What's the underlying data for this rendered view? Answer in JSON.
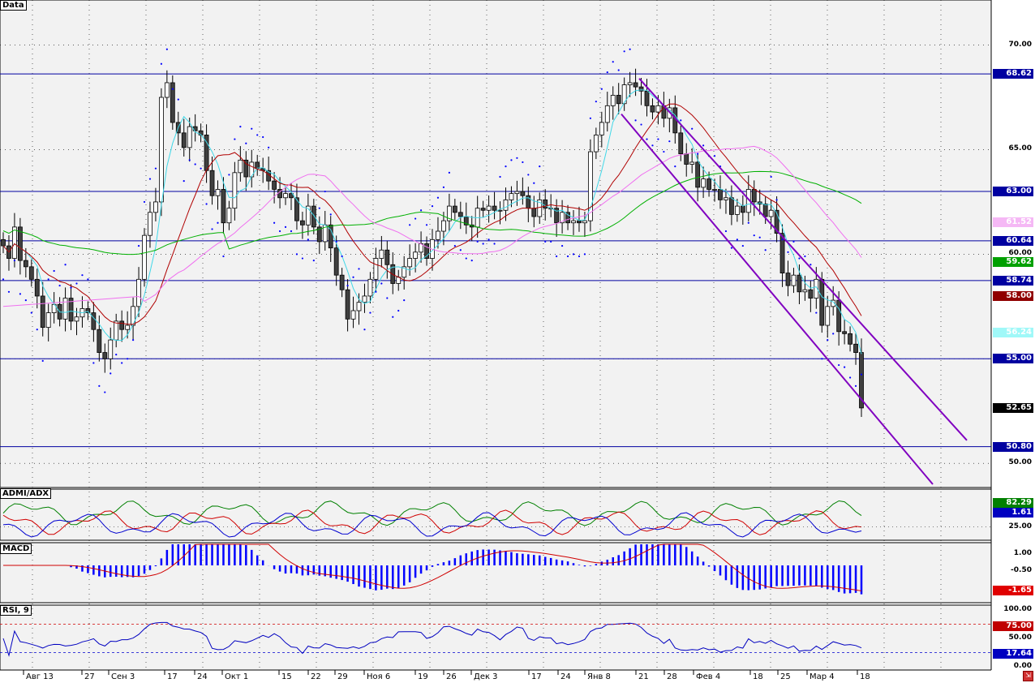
{
  "panels": {
    "main_title": "Data",
    "admi_title": "ADMI/ADX",
    "macd_title": "MACD",
    "rsi_title": "RSI, 9"
  },
  "main_axis": {
    "ticks": [
      "70.00",
      "65.00",
      "60.00",
      "55.00",
      "50.00"
    ]
  },
  "admi_axis": {
    "ticks": [
      "25.00"
    ]
  },
  "macd_axis": {
    "ticks": [
      "1.00",
      "-0.50"
    ]
  },
  "rsi_axis": {
    "ticks": [
      "100.00",
      "50.00",
      "0.00"
    ]
  },
  "price_tags": [
    {
      "value": "68.62",
      "bg": "#0000a0",
      "fg": "#ffffff"
    },
    {
      "value": "63.00",
      "bg": "#0000a0",
      "fg": "#ffffff"
    },
    {
      "value": "61.52",
      "bg": "#f5b8f5",
      "fg": "#ffffff"
    },
    {
      "value": "60.64",
      "bg": "#0000a0",
      "fg": "#ffffff"
    },
    {
      "value": "59.62",
      "bg": "#00a000",
      "fg": "#ffffff"
    },
    {
      "value": "58.74",
      "bg": "#0000a0",
      "fg": "#ffffff"
    },
    {
      "value": "58.00",
      "bg": "#900000",
      "fg": "#ffffff"
    },
    {
      "value": "56.24",
      "bg": "#a0f8f8",
      "fg": "#ffffff"
    },
    {
      "value": "55.00",
      "bg": "#0000a0",
      "fg": "#ffffff"
    },
    {
      "value": "52.65",
      "bg": "#000000",
      "fg": "#ffffff"
    },
    {
      "value": "50.80",
      "bg": "#0000a0",
      "fg": "#ffffff"
    }
  ],
  "indicator_tags": [
    {
      "value": "82.29",
      "bg": "#008000",
      "fg": "#ffffff"
    },
    {
      "value": "1.61",
      "bg": "#0000c0",
      "fg": "#ffffff"
    },
    {
      "value": "-1.65",
      "bg": "#e00000",
      "fg": "#ffffff"
    },
    {
      "value": "75.00",
      "bg": "#c00000",
      "fg": "#ffffff"
    },
    {
      "value": "17.64",
      "bg": "#0000c0",
      "fg": "#ffffff"
    }
  ],
  "x_labels": [
    "Авг 13",
    "27",
    "Сен 3",
    "17",
    "24",
    "Окт 1",
    "15",
    "22",
    "29",
    "Ноя 6",
    "19",
    "26",
    "Дек 3",
    "17",
    "24",
    "Янв 8",
    "21",
    "28",
    "Фев 4",
    "18",
    "25",
    "Мар 4",
    "18"
  ],
  "colors": {
    "hline": "#0000a0",
    "channel": "#8000c0",
    "ma_fast": "#40d8e8",
    "ma_mid": "#b00000",
    "ma_slow": "#00b000",
    "ma_pink": "#f070f0",
    "sar": "#0000ff",
    "candle_up": "#ffffff",
    "candle_down": "#404040"
  },
  "chart_data": {
    "type": "candlestick",
    "title": "Data",
    "ylim": [
      49,
      72
    ],
    "horizontal_levels": [
      68.62,
      63.0,
      60.64,
      58.74,
      55.0,
      50.8
    ],
    "last_values": {
      "close": 52.65,
      "ma_fast": 56.24,
      "ma_mid": 58.0,
      "ma_slow": 59.62,
      "ma_pink": 61.52
    },
    "close": [
      60.4,
      59.8,
      61.3,
      59.7,
      59.4,
      58.8,
      58.0,
      56.5,
      57.2,
      57.6,
      56.9,
      57.9,
      56.8,
      57.0,
      57.4,
      57.2,
      56.4,
      55.3,
      55.0,
      55.9,
      56.8,
      56.4,
      56.6,
      57.5,
      58.8,
      60.9,
      62.0,
      62.5,
      67.5,
      68.2,
      66.3,
      65.8,
      65.1,
      66.1,
      65.9,
      65.7,
      64.0,
      62.8,
      63.1,
      61.5,
      62.2,
      63.9,
      64.5,
      63.7,
      64.4,
      64.1,
      64.0,
      63.5,
      63.1,
      62.7,
      62.9,
      62.7,
      61.6,
      61.4,
      62.3,
      61.3,
      60.6,
      61.4,
      60.3,
      59.0,
      58.3,
      56.9,
      57.3,
      57.7,
      58.0,
      58.8,
      59.8,
      60.2,
      59.5,
      58.6,
      58.9,
      59.4,
      59.8,
      60.1,
      60.5,
      59.8,
      60.7,
      61.1,
      61.6,
      62.3,
      62.0,
      61.8,
      61.4,
      61.3,
      62.2,
      62.1,
      62.3,
      62.1,
      62.1,
      62.6,
      62.9,
      63.0,
      62.8,
      62.2,
      61.8,
      62.6,
      62.2,
      62.2,
      61.5,
      62.0,
      61.5,
      61.6,
      61.5,
      61.6,
      64.9,
      65.7,
      66.3,
      67.1,
      67.6,
      67.2,
      68.1,
      68.2,
      68.0,
      67.8,
      67.1,
      66.8,
      67.1,
      66.5,
      67.0,
      65.8,
      64.8,
      64.3,
      64.4,
      63.2,
      63.6,
      63.1,
      63.1,
      62.6,
      62.7,
      61.9,
      62.3,
      62.0,
      63.1,
      62.5,
      62.4,
      61.8,
      62.1,
      61.0,
      59.1,
      58.5,
      59.0,
      58.2,
      58.3,
      57.9,
      58.8,
      56.6,
      57.5,
      57.8,
      56.3,
      56.2,
      55.7,
      55.3,
      52.65
    ],
    "series_panels": {
      "ADMI/ADX": {
        "ylim": [
          0,
          100
        ],
        "last": {
          "ADX": 82.29,
          "-DI": 1.61
        },
        "ticks": [
          25
        ]
      },
      "MACD": {
        "last": -1.65,
        "ticks": [
          1.0,
          -0.5
        ]
      },
      "RSI, 9": {
        "ylim": [
          0,
          100
        ],
        "levels": [
          75,
          17.64
        ],
        "ticks": [
          100,
          50,
          0
        ]
      }
    }
  }
}
